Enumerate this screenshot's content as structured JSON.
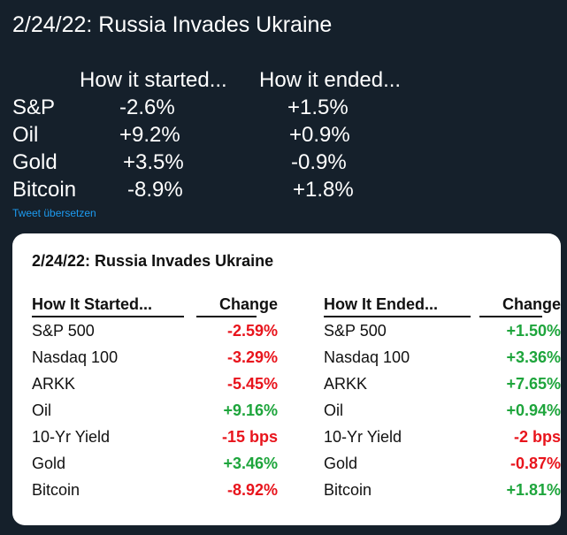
{
  "tweet": {
    "title": "2/24/22: Russia Invades Ukraine",
    "header_started": "How it started...",
    "header_ended": "How it ended...",
    "rows": [
      {
        "label": "S&P",
        "started": "-2.6%",
        "ended": "+1.5%"
      },
      {
        "label": "Oil",
        "started": "+9.2%",
        "ended": "+0.9%"
      },
      {
        "label": "Gold",
        "started": "+3.5%",
        "ended": "-0.9%"
      },
      {
        "label": "Bitcoin",
        "started": "-8.9%",
        "ended": "+1.8%"
      }
    ],
    "translate_label": "Tweet übersetzen"
  },
  "card": {
    "title": "2/24/22: Russia Invades Ukraine",
    "colors": {
      "positive": "#1ea53c",
      "negative": "#e8141c"
    },
    "started_table": {
      "header_label": "How It Started...",
      "header_change": "Change",
      "rows": [
        {
          "label": "S&P 500",
          "change": "-2.59%",
          "sign": "negative"
        },
        {
          "label": "Nasdaq 100",
          "change": "-3.29%",
          "sign": "negative"
        },
        {
          "label": "ARKK",
          "change": "-5.45%",
          "sign": "negative"
        },
        {
          "label": "Oil",
          "change": "+9.16%",
          "sign": "positive"
        },
        {
          "label": "10-Yr Yield",
          "change": "-15 bps",
          "sign": "negative"
        },
        {
          "label": "Gold",
          "change": "+3.46%",
          "sign": "positive"
        },
        {
          "label": "Bitcoin",
          "change": "-8.92%",
          "sign": "negative"
        }
      ]
    },
    "ended_table": {
      "header_label": "How It Ended...",
      "header_change": "Change",
      "rows": [
        {
          "label": "S&P 500",
          "change": "+1.50%",
          "sign": "positive"
        },
        {
          "label": "Nasdaq 100",
          "change": "+3.36%",
          "sign": "positive"
        },
        {
          "label": "ARKK",
          "change": "+7.65%",
          "sign": "positive"
        },
        {
          "label": "Oil",
          "change": "+0.94%",
          "sign": "positive"
        },
        {
          "label": "10-Yr Yield",
          "change": "-2 bps",
          "sign": "negative"
        },
        {
          "label": "Gold",
          "change": "-0.87%",
          "sign": "negative"
        },
        {
          "label": "Bitcoin",
          "change": "+1.81%",
          "sign": "positive"
        }
      ]
    }
  }
}
